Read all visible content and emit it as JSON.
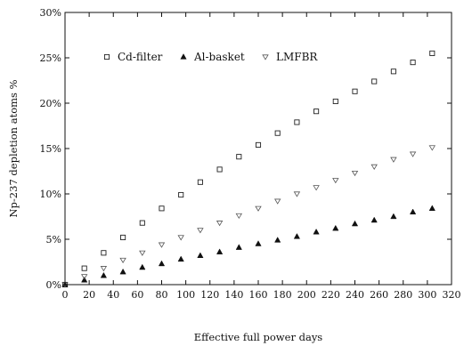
{
  "chart_data": {
    "type": "scatter",
    "xlabel": "Effective full power days",
    "ylabel": "Np-237 depletion atoms %",
    "xlim": [
      0,
      320
    ],
    "ylim": [
      0,
      30
    ],
    "x_ticks": [
      0,
      20,
      40,
      60,
      80,
      100,
      120,
      140,
      160,
      180,
      200,
      220,
      240,
      260,
      280,
      300,
      320
    ],
    "x_tick_labels": [
      "0",
      "20",
      "40",
      "60",
      "80",
      "100",
      "120",
      "140",
      "160",
      "180",
      "200",
      "220",
      "240",
      "260",
      "280",
      "300",
      "320"
    ],
    "y_ticks": [
      0,
      5,
      10,
      15,
      20,
      25,
      30
    ],
    "y_tick_labels": [
      "0%",
      "5%",
      "10%",
      "15%",
      "20%",
      "25%",
      "30%"
    ],
    "grid": false,
    "legend_position": "top-left",
    "series": [
      {
        "name": "Cd-filter",
        "marker": "square-open",
        "x": [
          0,
          16,
          32,
          48,
          64,
          80,
          96,
          112,
          128,
          144,
          160,
          176,
          192,
          208,
          224,
          240,
          256,
          272,
          288,
          304
        ],
        "y": [
          0,
          1.8,
          3.5,
          5.2,
          6.8,
          8.4,
          9.9,
          11.3,
          12.7,
          14.1,
          15.4,
          16.7,
          17.9,
          19.1,
          20.2,
          21.3,
          22.4,
          23.5,
          24.5,
          25.5
        ]
      },
      {
        "name": "Al-basket",
        "marker": "triangle-filled",
        "x": [
          0,
          16,
          32,
          48,
          64,
          80,
          96,
          112,
          128,
          144,
          160,
          176,
          192,
          208,
          224,
          240,
          256,
          272,
          288,
          304
        ],
        "y": [
          0,
          0.5,
          1.0,
          1.4,
          1.9,
          2.3,
          2.8,
          3.2,
          3.6,
          4.1,
          4.5,
          4.9,
          5.3,
          5.8,
          6.2,
          6.7,
          7.1,
          7.5,
          8.0,
          8.4
        ]
      },
      {
        "name": "LMFBR",
        "marker": "triangle-down-open",
        "x": [
          0,
          16,
          32,
          48,
          64,
          80,
          96,
          112,
          128,
          144,
          160,
          176,
          192,
          208,
          224,
          240,
          256,
          272,
          288,
          304
        ],
        "y": [
          0,
          0.9,
          1.8,
          2.7,
          3.5,
          4.4,
          5.2,
          6.0,
          6.8,
          7.6,
          8.4,
          9.2,
          10.0,
          10.7,
          11.5,
          12.3,
          13.0,
          13.8,
          14.4,
          15.1
        ]
      }
    ]
  }
}
